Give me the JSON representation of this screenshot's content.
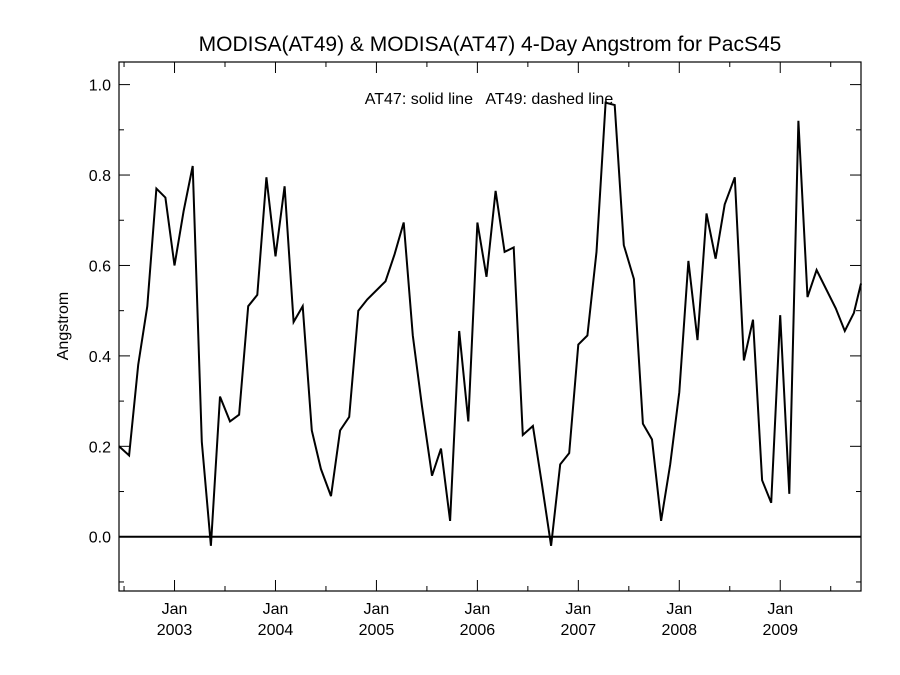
{
  "chart_data": {
    "type": "line",
    "title": "MODISA(AT49) & MODISA(AT47) 4-Day Angstrom for PacS45",
    "annotation": "AT47: solid line   AT49: dashed line",
    "xlabel": "",
    "ylabel": "Angstrom",
    "ylim": [
      -0.12,
      1.05
    ],
    "xlim": [
      2002.45,
      2009.8
    ],
    "y_ticks": [
      0.0,
      0.2,
      0.4,
      0.6,
      0.8,
      1.0
    ],
    "y_tick_labels": [
      "0.0",
      "0.2",
      "0.4",
      "0.6",
      "0.8",
      "1.0"
    ],
    "x_ticks": [
      2003.0,
      2004.0,
      2005.0,
      2006.0,
      2007.0,
      2008.0,
      2009.0
    ],
    "x_tick_month_labels": [
      "Jan",
      "Jan",
      "Jan",
      "Jan",
      "Jan",
      "Jan",
      "Jan"
    ],
    "x_tick_year_labels": [
      "2003",
      "2004",
      "2005",
      "2006",
      "2007",
      "2008",
      "2009"
    ],
    "reference_line_y": 0.0,
    "grid": false,
    "series": [
      {
        "style": "solid",
        "x": [
          2002.45,
          2002.55,
          2002.64,
          2002.73,
          2002.82,
          2002.91,
          2003.0,
          2003.09,
          2003.18,
          2003.27,
          2003.36,
          2003.45,
          2003.55,
          2003.64,
          2003.73,
          2003.82,
          2003.91,
          2004.0,
          2004.09,
          2004.18,
          2004.27,
          2004.36,
          2004.45,
          2004.55,
          2004.64,
          2004.73,
          2004.82,
          2004.91,
          2005.09,
          2005.18,
          2005.27,
          2005.36,
          2005.45,
          2005.55,
          2005.64,
          2005.73,
          2005.82,
          2005.91,
          2006.0,
          2006.09,
          2006.18,
          2006.27,
          2006.36,
          2006.45,
          2006.55,
          2006.64,
          2006.73,
          2006.82,
          2006.91,
          2007.0,
          2007.09,
          2007.18,
          2007.27,
          2007.36,
          2007.45,
          2007.55,
          2007.64,
          2007.73,
          2007.82,
          2007.91,
          2008.0,
          2008.09,
          2008.18,
          2008.27,
          2008.36,
          2008.45,
          2008.55,
          2008.64,
          2008.73,
          2008.82,
          2008.91,
          2009.0,
          2009.09,
          2009.18,
          2009.27,
          2009.36,
          2009.55,
          2009.64,
          2009.73,
          2009.8
        ],
        "y": [
          0.2,
          0.18,
          0.38,
          0.51,
          0.77,
          0.75,
          0.6,
          0.72,
          0.82,
          0.21,
          -0.02,
          0.31,
          0.255,
          0.27,
          0.51,
          0.535,
          0.795,
          0.62,
          0.775,
          0.475,
          0.51,
          0.235,
          0.15,
          0.09,
          0.235,
          0.265,
          0.5,
          0.525,
          0.565,
          0.625,
          0.695,
          0.445,
          0.29,
          0.135,
          0.195,
          0.035,
          0.455,
          0.255,
          0.695,
          0.575,
          0.765,
          0.63,
          0.64,
          0.225,
          0.245,
          0.115,
          -0.02,
          0.16,
          0.185,
          0.425,
          0.445,
          0.63,
          0.96,
          0.955,
          0.645,
          0.57,
          0.25,
          0.215,
          0.035,
          0.16,
          0.32,
          0.61,
          0.435,
          0.715,
          0.615,
          0.735,
          0.795,
          0.39,
          0.48,
          0.125,
          0.075,
          0.49,
          0.095,
          0.92,
          0.53,
          0.59,
          0.505,
          0.455,
          0.495,
          0.56
        ]
      }
    ]
  }
}
